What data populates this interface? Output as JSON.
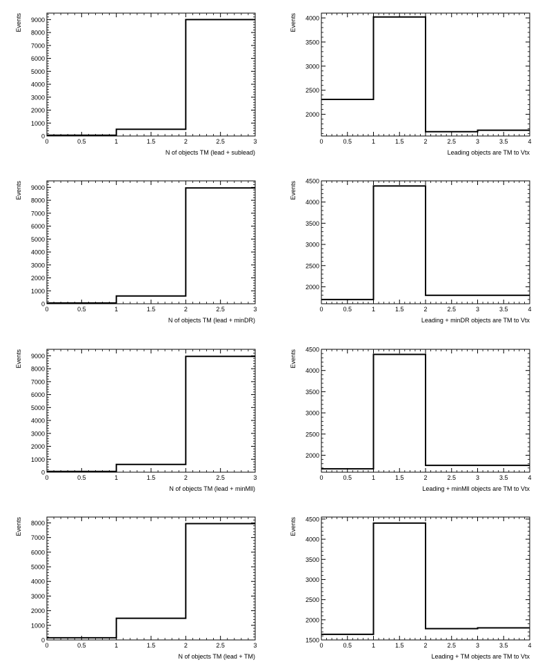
{
  "chart_data": [
    {
      "type": "histogram",
      "xlabel": "N of objects TM (lead + sublead)",
      "ylabel": "Events",
      "xlim": [
        0,
        3
      ],
      "ylim": [
        0,
        9500
      ],
      "xticks": [
        "0",
        "0.5",
        "1",
        "1.5",
        "2",
        "2.5",
        "3"
      ],
      "yticks": [
        "0",
        "1000",
        "2000",
        "3000",
        "4000",
        "5000",
        "6000",
        "7000",
        "8000",
        "9000"
      ],
      "bin_edges": [
        0,
        1,
        2,
        3
      ],
      "values": [
        60,
        520,
        9000
      ]
    },
    {
      "type": "histogram",
      "xlabel": "Leading objects are TM to Vtx",
      "ylabel": "Events",
      "xlim": [
        0,
        4
      ],
      "ylim": [
        1550,
        4100
      ],
      "xticks": [
        "0",
        "0.5",
        "1",
        "1.5",
        "2",
        "2.5",
        "3",
        "3.5",
        "4"
      ],
      "yticks": [
        "2000",
        "2500",
        "3000",
        "3500",
        "4000"
      ],
      "bin_edges": [
        0,
        1,
        2,
        3,
        4
      ],
      "values": [
        2310,
        4020,
        1640,
        1670
      ]
    },
    {
      "type": "histogram",
      "xlabel": "N of objects TM (lead + minDR)",
      "ylabel": "Events",
      "xlim": [
        0,
        3
      ],
      "ylim": [
        0,
        9500
      ],
      "xticks": [
        "0",
        "0.5",
        "1",
        "1.5",
        "2",
        "2.5",
        "3"
      ],
      "yticks": [
        "0",
        "1000",
        "2000",
        "3000",
        "4000",
        "5000",
        "6000",
        "7000",
        "8000",
        "9000"
      ],
      "bin_edges": [
        0,
        1,
        2,
        3
      ],
      "values": [
        60,
        600,
        8950
      ]
    },
    {
      "type": "histogram",
      "xlabel": "Leading + minDR objects are TM to Vtx",
      "ylabel": "Events",
      "xlim": [
        0,
        4
      ],
      "ylim": [
        1600,
        4500
      ],
      "xticks": [
        "0",
        "0.5",
        "1",
        "1.5",
        "2",
        "2.5",
        "3",
        "3.5",
        "4"
      ],
      "yticks": [
        "2000",
        "2500",
        "3000",
        "3500",
        "4000",
        "4500"
      ],
      "bin_edges": [
        0,
        1,
        2,
        4
      ],
      "values": [
        1700,
        4380,
        1800
      ]
    },
    {
      "type": "histogram",
      "xlabel": "N of objects TM (lead + minMll)",
      "ylabel": "Events",
      "xlim": [
        0,
        3
      ],
      "ylim": [
        0,
        9500
      ],
      "xticks": [
        "0",
        "0.5",
        "1",
        "1.5",
        "2",
        "2.5",
        "3"
      ],
      "yticks": [
        "0",
        "1000",
        "2000",
        "3000",
        "4000",
        "5000",
        "6000",
        "7000",
        "8000",
        "9000"
      ],
      "bin_edges": [
        0,
        1,
        2,
        3
      ],
      "values": [
        60,
        600,
        8950
      ]
    },
    {
      "type": "histogram",
      "xlabel": "Leading + minMll objects are TM to Vtx",
      "ylabel": "Events",
      "xlim": [
        0,
        4
      ],
      "ylim": [
        1600,
        4500
      ],
      "xticks": [
        "0",
        "0.5",
        "1",
        "1.5",
        "2",
        "2.5",
        "3",
        "3.5",
        "4"
      ],
      "yticks": [
        "2000",
        "2500",
        "3000",
        "3500",
        "4000",
        "4500"
      ],
      "bin_edges": [
        0,
        1,
        2,
        4
      ],
      "values": [
        1680,
        4380,
        1760
      ]
    },
    {
      "type": "histogram",
      "xlabel": "N of objects TM (lead + TM)",
      "ylabel": "Events",
      "xlim": [
        0,
        3
      ],
      "ylim": [
        0,
        8400
      ],
      "xticks": [
        "0",
        "0.5",
        "1",
        "1.5",
        "2",
        "2.5",
        "3"
      ],
      "yticks": [
        "0",
        "1000",
        "2000",
        "3000",
        "4000",
        "5000",
        "6000",
        "7000",
        "8000"
      ],
      "bin_edges": [
        0,
        1,
        2,
        3
      ],
      "values": [
        150,
        1480,
        7950
      ]
    },
    {
      "type": "histogram",
      "xlabel": "Leading + TM objects are TM to Vtx",
      "ylabel": "Events",
      "xlim": [
        0,
        4
      ],
      "ylim": [
        1500,
        4550
      ],
      "xticks": [
        "0",
        "0.5",
        "1",
        "1.5",
        "2",
        "2.5",
        "3",
        "3.5",
        "4"
      ],
      "yticks": [
        "1500",
        "2000",
        "2500",
        "3000",
        "3500",
        "4000",
        "4500"
      ],
      "bin_edges": [
        0,
        1,
        2,
        3,
        4
      ],
      "values": [
        1640,
        4400,
        1780,
        1800
      ]
    }
  ]
}
